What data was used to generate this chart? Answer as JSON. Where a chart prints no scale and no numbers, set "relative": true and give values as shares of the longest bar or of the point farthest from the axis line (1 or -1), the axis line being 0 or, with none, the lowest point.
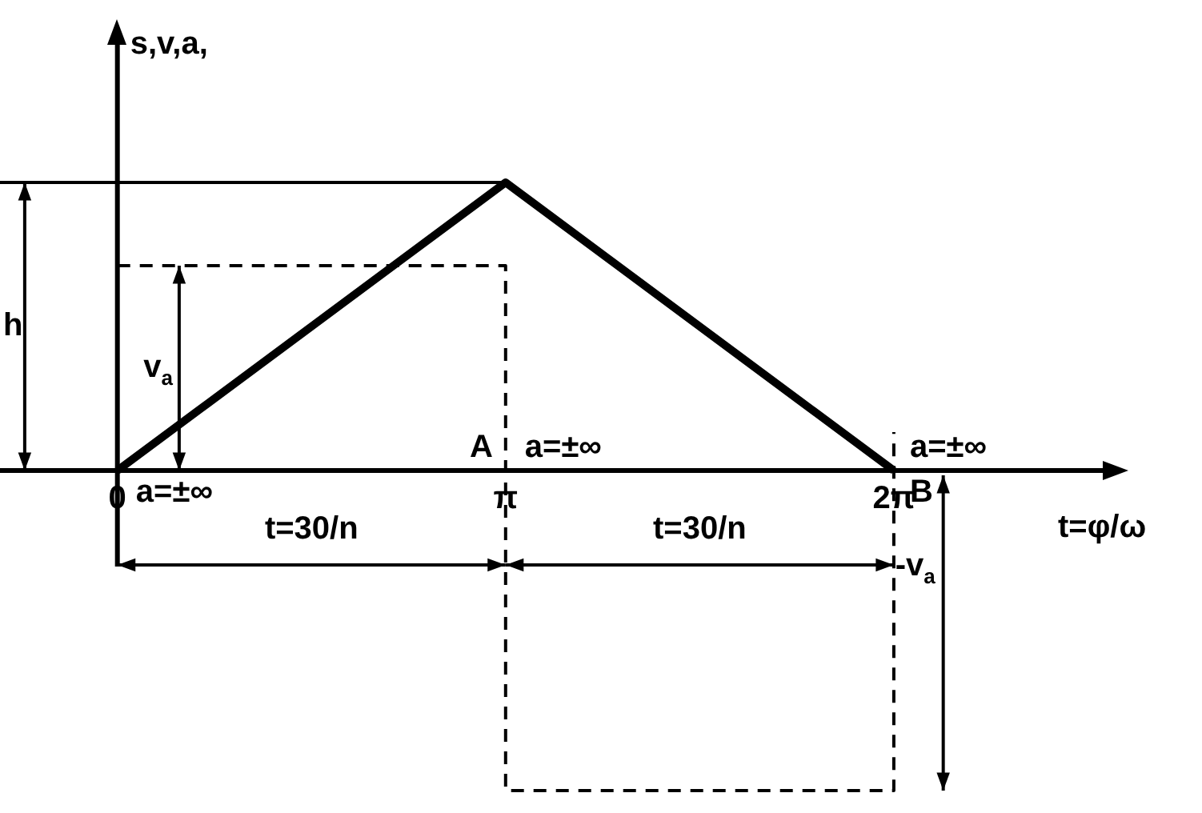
{
  "chart_data": {
    "type": "line",
    "relative": true,
    "xlabel": "t=φ/ω",
    "ylabel": "s,v,a,",
    "xlim": [
      -0.95,
      8.0
    ],
    "xticks": [
      {
        "value": 0,
        "label": "0"
      },
      {
        "value": 3.14159,
        "label": "π"
      },
      {
        "value": 6.28318,
        "label": "2π"
      }
    ],
    "series": [
      {
        "color": "#000000",
        "line_style": "solid",
        "x": [
          0,
          3.14159,
          6.28318
        ],
        "values": [
          0,
          0.9,
          0
        ]
      },
      {
        "color": "#000000",
        "line_style": "dashed",
        "x": [
          0,
          3.14159,
          3.14159,
          6.28318,
          6.28318
        ],
        "values": [
          0.64,
          0.64,
          -1,
          -1,
          0.12
        ]
      }
    ],
    "annotations": [
      "h",
      "v$_{a}$",
      "-v$_{a}$",
      "a=±∞",
      "A",
      "a=±∞",
      "B",
      "a=±∞",
      "t=30/n",
      "t=30/n"
    ]
  }
}
